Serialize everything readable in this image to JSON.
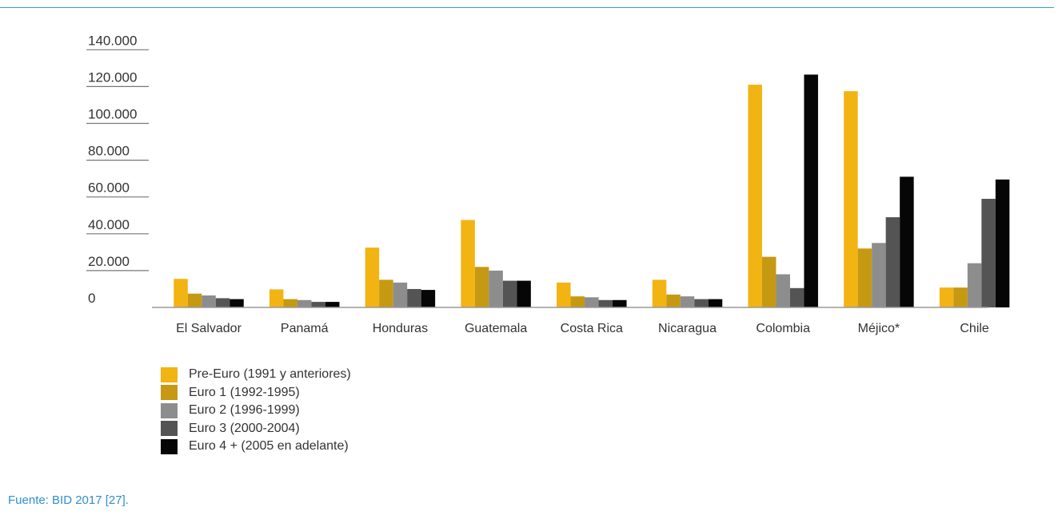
{
  "source": "Fuente: BID 2017 [27].",
  "chart_data": {
    "type": "bar",
    "categories": [
      "El Salvador",
      "Panamá",
      "Honduras",
      "Guatemala",
      "Costa Rica",
      "Nicaragua",
      "Colombia",
      "Méjico*",
      "Chile"
    ],
    "y_tick_labels": [
      "0",
      "20.000",
      "40.000",
      "60.000",
      "80.000",
      "100.000",
      "120.000",
      "140.000"
    ],
    "y_ticks": [
      0,
      20000,
      40000,
      60000,
      80000,
      100000,
      120000,
      140000
    ],
    "ylim": [
      0,
      140000
    ],
    "grid": false,
    "legend_position": "bottom-left",
    "series": [
      {
        "name": "Pre-Euro (1991 y anteriores)",
        "color": "#f2b413",
        "values": [
          15500,
          9800,
          32500,
          47500,
          13500,
          15000,
          121000,
          117500,
          10800
        ]
      },
      {
        "name": "Euro 1 (1992-1995)",
        "color": "#c69912",
        "values": [
          7500,
          4500,
          15000,
          22000,
          6000,
          7000,
          27500,
          32000,
          10800
        ]
      },
      {
        "name": "Euro 2 (1996-1999)",
        "color": "#8d8d8d",
        "values": [
          6500,
          4000,
          13500,
          20000,
          5500,
          6000,
          18000,
          35000,
          24000
        ]
      },
      {
        "name": "Euro 3 (2000-2004)",
        "color": "#545454",
        "values": [
          5000,
          3000,
          10000,
          14500,
          4000,
          4500,
          10500,
          49000,
          59000
        ]
      },
      {
        "name": "Euro 4 + (2005 en adelante)",
        "color": "#060606",
        "values": [
          4500,
          3000,
          9500,
          14500,
          4000,
          4500,
          126500,
          71000,
          69500
        ]
      }
    ]
  }
}
